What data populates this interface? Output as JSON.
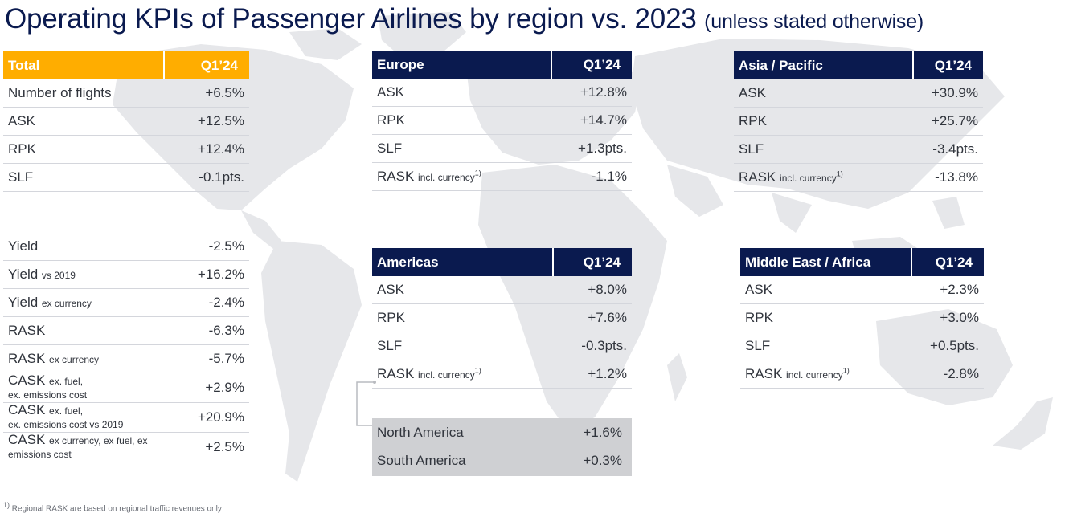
{
  "title": "Operating KPIs of Passenger Airlines by region vs. 2023",
  "title_note": "(unless stated otherwise)",
  "total": {
    "header": "Total",
    "period": "Q1’24",
    "rows": [
      {
        "label": "Number of flights",
        "value": "+6.5%"
      },
      {
        "label": "ASK",
        "value": "+12.5%"
      },
      {
        "label": "RPK",
        "value": "+12.4%"
      },
      {
        "label": "SLF",
        "value": "-0.1pts."
      }
    ],
    "rows2": [
      {
        "label": "Yield",
        "value": "-2.5%"
      },
      {
        "label": "Yield",
        "sub": "vs 2019",
        "value": "+16.2%"
      },
      {
        "label": "Yield",
        "sub": "ex currency",
        "value": "-2.4%"
      },
      {
        "label": "RASK",
        "value": "-6.3%"
      },
      {
        "label": "RASK",
        "sub": "ex currency",
        "value": "-5.7%"
      },
      {
        "label": "CASK",
        "sub": "ex. fuel,",
        "sub2": "ex. emissions cost",
        "value": "+2.9%"
      },
      {
        "label": "CASK",
        "sub": "ex. fuel,",
        "sub2": "ex. emissions cost vs 2019",
        "value": "+20.9%"
      },
      {
        "label": "CASK",
        "sub": "ex currency, ex fuel, ex",
        "sub2": "emissions cost",
        "value": "+2.5%"
      }
    ]
  },
  "europe": {
    "header": "Europe",
    "period": "Q1’24",
    "rows": [
      {
        "label": "ASK",
        "value": "+12.8%"
      },
      {
        "label": "RPK",
        "value": "+14.7%"
      },
      {
        "label": "SLF",
        "value": "+1.3pts."
      },
      {
        "label": "RASK",
        "sub": "incl. currency",
        "sup": "1)",
        "value": "-1.1%"
      }
    ]
  },
  "asia": {
    "header": "Asia / Pacific",
    "period": "Q1’24",
    "rows": [
      {
        "label": "ASK",
        "value": "+30.9%"
      },
      {
        "label": "RPK",
        "value": "+25.7%"
      },
      {
        "label": "SLF",
        "value": "-3.4pts."
      },
      {
        "label": "RASK",
        "sub": "incl. currency",
        "sup": "1)",
        "value": "-13.8%"
      }
    ]
  },
  "americas": {
    "header": "Americas",
    "period": "Q1’24",
    "rows": [
      {
        "label": "ASK",
        "value": "+8.0%"
      },
      {
        "label": "RPK",
        "value": "+7.6%"
      },
      {
        "label": "SLF",
        "value": "-0.3pts."
      },
      {
        "label": "RASK",
        "sub": "incl. currency",
        "sup": "1)",
        "value": "+1.2%"
      }
    ],
    "subregions": [
      {
        "label": "North America",
        "value": "+1.6%"
      },
      {
        "label": "South America",
        "value": "+0.3%"
      }
    ]
  },
  "mea": {
    "header": "Middle East / Africa",
    "period": "Q1’24",
    "rows": [
      {
        "label": "ASK",
        "value": "+2.3%"
      },
      {
        "label": "RPK",
        "value": "+3.0%"
      },
      {
        "label": "SLF",
        "value": "+0.5pts."
      },
      {
        "label": "RASK",
        "sub": "incl. currency",
        "sup": "1)",
        "value": "-2.8%"
      }
    ]
  },
  "footnote": {
    "sup": "1)",
    "text": "Regional RASK are based on regional traffic revenues only"
  },
  "colors": {
    "navy": "#0a1a4f",
    "orange": "#ffad00",
    "map": "#e6e7ea",
    "subregion_bg": "#cfd0d3"
  }
}
